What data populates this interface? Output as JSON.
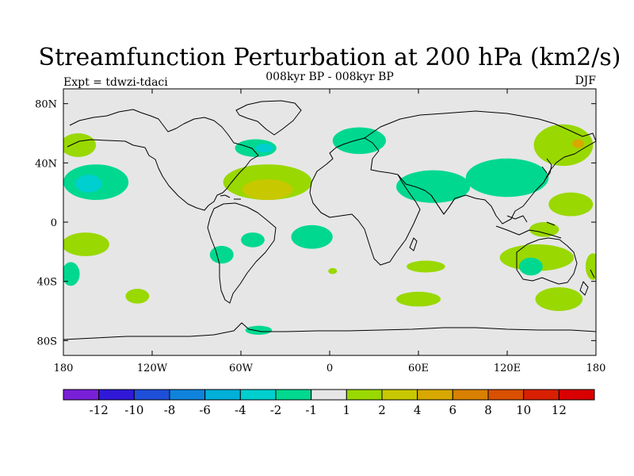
{
  "header": {
    "title": "Streamfunction Perturbation at 200 hPa (km2/s)",
    "subtitle": "008kyr BP - 008kyr BP",
    "experiment": "Expt = tdwzi-tdaci",
    "season": "DJF"
  },
  "map": {
    "projection": "cylindrical equidistant",
    "background_color": "#e6e6e6",
    "lon_ticks": [
      "180",
      "120W",
      "60W",
      "0",
      "60E",
      "120E",
      "180"
    ],
    "lat_ticks": [
      "80N",
      "40N",
      "0",
      "40S",
      "80S"
    ]
  },
  "colorbar": {
    "labels": [
      "-12",
      "-10",
      "-8",
      "-6",
      "-4",
      "-2",
      "-1",
      "1",
      "2",
      "4",
      "6",
      "8",
      "10",
      "12"
    ],
    "colors": [
      "#7a1fd8",
      "#2f18d8",
      "#1e4fd8",
      "#0f83dc",
      "#00b0d8",
      "#00cfcf",
      "#00d890",
      "#e6e6e6",
      "#99d800",
      "#c8c800",
      "#d8a800",
      "#d88000",
      "#d85000",
      "#d82000",
      "#d80000"
    ]
  },
  "chart_data": {
    "type": "heatmap",
    "title": "Streamfunction Perturbation at 200 hPa (km2/s)",
    "subtitle": "008kyr BP - 008kyr BP",
    "x_range_deg": [
      -180,
      180
    ],
    "y_range_deg": [
      -90,
      90
    ],
    "contour_levels": [
      -12,
      -10,
      -8,
      -6,
      -4,
      -2,
      -1,
      1,
      2,
      4,
      6,
      8,
      10,
      12
    ],
    "features": [
      {
        "lon": -50,
        "lat": 50,
        "rx": 14,
        "ry": 6,
        "level": -2
      },
      {
        "lon": -44,
        "lat": 50,
        "rx": 6,
        "ry": 3,
        "level": -4
      },
      {
        "lon": -158,
        "lat": 27,
        "rx": 22,
        "ry": 12,
        "level": -2
      },
      {
        "lon": -163,
        "lat": 26,
        "rx": 9,
        "ry": 6,
        "level": -4
      },
      {
        "lon": 20,
        "lat": 55,
        "rx": 18,
        "ry": 9,
        "level": -2
      },
      {
        "lon": 70,
        "lat": 24,
        "rx": 25,
        "ry": 11,
        "level": -2
      },
      {
        "lon": 120,
        "lat": 30,
        "rx": 28,
        "ry": 13,
        "level": -2
      },
      {
        "lon": -12,
        "lat": -10,
        "rx": 14,
        "ry": 8,
        "level": -2
      },
      {
        "lon": -52,
        "lat": -12,
        "rx": 8,
        "ry": 5,
        "level": -2
      },
      {
        "lon": -73,
        "lat": -22,
        "rx": 8,
        "ry": 6,
        "level": -2
      },
      {
        "lon": 136,
        "lat": -30,
        "rx": 8,
        "ry": 6,
        "level": -2
      },
      {
        "lon": -48,
        "lat": -73,
        "rx": 9,
        "ry": 3,
        "level": -2
      },
      {
        "lon": -175,
        "lat": -35,
        "rx": 6,
        "ry": 8,
        "level": -2
      },
      {
        "lon": -170,
        "lat": 52,
        "rx": 12,
        "ry": 8,
        "level": 1
      },
      {
        "lon": -42,
        "lat": 27,
        "rx": 30,
        "ry": 12,
        "level": 1
      },
      {
        "lon": -42,
        "lat": 22,
        "rx": 17,
        "ry": 7,
        "level": 2
      },
      {
        "lon": 158,
        "lat": 52,
        "rx": 20,
        "ry": 14,
        "level": 1
      },
      {
        "lon": 168,
        "lat": 53,
        "rx": 4,
        "ry": 3,
        "level": 4
      },
      {
        "lon": 163,
        "lat": 12,
        "rx": 15,
        "ry": 8,
        "level": 1
      },
      {
        "lon": 145,
        "lat": -5,
        "rx": 10,
        "ry": 5,
        "level": 1
      },
      {
        "lon": 140,
        "lat": -24,
        "rx": 25,
        "ry": 9,
        "level": 1
      },
      {
        "lon": 155,
        "lat": -52,
        "rx": 16,
        "ry": 8,
        "level": 1
      },
      {
        "lon": 178,
        "lat": -30,
        "rx": 5,
        "ry": 9,
        "level": 1
      },
      {
        "lon": 65,
        "lat": -30,
        "rx": 13,
        "ry": 4,
        "level": 1
      },
      {
        "lon": 60,
        "lat": -52,
        "rx": 15,
        "ry": 5,
        "level": 1
      },
      {
        "lon": -130,
        "lat": -50,
        "rx": 8,
        "ry": 5,
        "level": 1
      },
      {
        "lon": -165,
        "lat": -15,
        "rx": 16,
        "ry": 8,
        "level": 1
      },
      {
        "lon": 2,
        "lat": -33,
        "rx": 3,
        "ry": 2,
        "level": 1
      }
    ]
  }
}
